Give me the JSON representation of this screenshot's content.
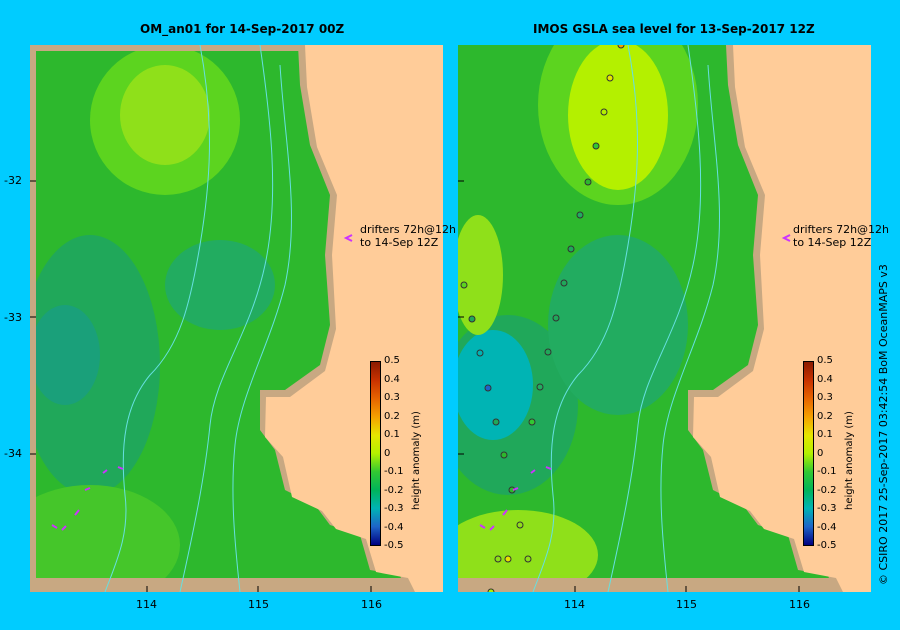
{
  "panels": [
    {
      "title": "OM_an01  for 14-Sep-2017 00Z",
      "drifter_note_line1": "drifters 72h@12h",
      "drifter_note_line2": "to 14-Sep 12Z"
    },
    {
      "title": "IMOS GSLA sea level  for 13-Sep-2017 12Z",
      "drifter_note_line1": "drifters 72h@12h",
      "drifter_note_line2": "to 14-Sep 12Z"
    }
  ],
  "lat_labels": [
    "-32",
    "-33",
    "-34"
  ],
  "lon_labels": [
    "114",
    "115",
    "116"
  ],
  "colorbar": {
    "title": "height anomaly (m)",
    "ticks": [
      "0.5",
      "0.4",
      "0.3",
      "0.2",
      "0.1",
      "0",
      "-0.1",
      "-0.2",
      "-0.3",
      "-0.4",
      "-0.5"
    ],
    "colors": [
      "#8b1a00",
      "#c83200",
      "#e66400",
      "#f5a000",
      "#e6e600",
      "#b4f000",
      "#32c832",
      "#00b45a",
      "#00b4b4",
      "#1e64c8",
      "#000080"
    ]
  },
  "colors": {
    "background": "#00ccff",
    "land": "#ffcc99",
    "coast_shelf": "#c8a882",
    "sea_base": "#2db82d",
    "bathymetry_contour": "#66e0e0",
    "drifter": "#cc33ff"
  },
  "copyright": "© CSIRO 2017   25-Sep-2017 03:42:54 BoM OceanMAPS v3"
}
